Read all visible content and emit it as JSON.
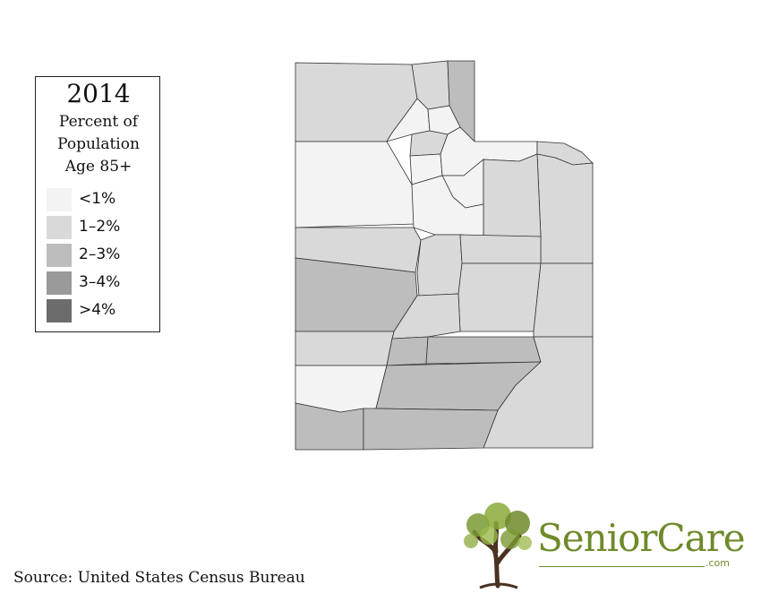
{
  "legend": {
    "year": "2014",
    "subtitle_lines": [
      "Percent of",
      "Population",
      "Age 85+"
    ],
    "items": [
      {
        "label": "<1%",
        "color": "#f3f3f3"
      },
      {
        "label": "1–2%",
        "color": "#d9d9d9"
      },
      {
        "label": "2–3%",
        "color": "#bdbdbd"
      },
      {
        "label": "3–4%",
        "color": "#9a9a9a"
      },
      {
        "label": ">4%",
        "color": "#6c6c6c"
      }
    ]
  },
  "map": {
    "stroke": "#333333",
    "regions": [
      {
        "name": "box-elder",
        "cls": 1
      },
      {
        "name": "cache",
        "cls": 1
      },
      {
        "name": "rich",
        "cls": 2
      },
      {
        "name": "weber",
        "cls": 0
      },
      {
        "name": "morgan",
        "cls": 0
      },
      {
        "name": "davis",
        "cls": 1
      },
      {
        "name": "salt-lake",
        "cls": 0
      },
      {
        "name": "summit",
        "cls": 0
      },
      {
        "name": "wasatch",
        "cls": 0
      },
      {
        "name": "daggett",
        "cls": 1
      },
      {
        "name": "uintah",
        "cls": 1
      },
      {
        "name": "duchesne",
        "cls": 1
      },
      {
        "name": "tooele",
        "cls": 0
      },
      {
        "name": "utah",
        "cls": 0
      },
      {
        "name": "juab",
        "cls": 1
      },
      {
        "name": "millard",
        "cls": 2
      },
      {
        "name": "sanpete",
        "cls": 1
      },
      {
        "name": "carbon",
        "cls": 1
      },
      {
        "name": "emery",
        "cls": 1
      },
      {
        "name": "grand",
        "cls": 1
      },
      {
        "name": "sevier",
        "cls": 1
      },
      {
        "name": "beaver",
        "cls": 1
      },
      {
        "name": "piute",
        "cls": 2
      },
      {
        "name": "wayne",
        "cls": 2
      },
      {
        "name": "iron",
        "cls": 0
      },
      {
        "name": "garfield",
        "cls": 2
      },
      {
        "name": "san-juan",
        "cls": 1
      },
      {
        "name": "washington",
        "cls": 2
      },
      {
        "name": "kane",
        "cls": 2
      }
    ]
  },
  "source": "Source: United States Census Bureau",
  "brand": {
    "name": "SeniorCare",
    "suffix": ".com",
    "logo_icon": "tree-icon",
    "color": "#6e8a2a"
  }
}
